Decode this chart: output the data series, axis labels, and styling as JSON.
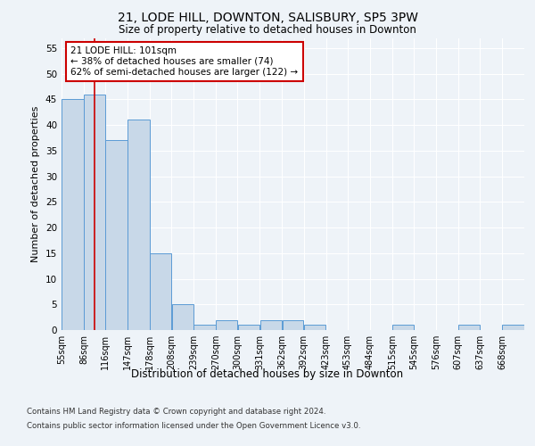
{
  "title": "21, LODE HILL, DOWNTON, SALISBURY, SP5 3PW",
  "subtitle": "Size of property relative to detached houses in Downton",
  "xlabel": "Distribution of detached houses by size in Downton",
  "ylabel": "Number of detached properties",
  "bin_labels": [
    "55sqm",
    "86sqm",
    "116sqm",
    "147sqm",
    "178sqm",
    "208sqm",
    "239sqm",
    "270sqm",
    "300sqm",
    "331sqm",
    "362sqm",
    "392sqm",
    "423sqm",
    "453sqm",
    "484sqm",
    "515sqm",
    "545sqm",
    "576sqm",
    "607sqm",
    "637sqm",
    "668sqm"
  ],
  "bin_edges": [
    55,
    86,
    116,
    147,
    178,
    208,
    239,
    270,
    300,
    331,
    362,
    392,
    423,
    453,
    484,
    515,
    545,
    576,
    607,
    637,
    668,
    699
  ],
  "bar_heights": [
    45,
    46,
    37,
    41,
    15,
    5,
    1,
    2,
    1,
    2,
    2,
    1,
    0,
    0,
    0,
    1,
    0,
    0,
    1,
    0,
    1
  ],
  "bar_color": "#c8d8e8",
  "bar_edge_color": "#5b9bd5",
  "red_line_x": 101,
  "ylim": [
    0,
    57
  ],
  "yticks": [
    0,
    5,
    10,
    15,
    20,
    25,
    30,
    35,
    40,
    45,
    50,
    55
  ],
  "annotation_text": "21 LODE HILL: 101sqm\n← 38% of detached houses are smaller (74)\n62% of semi-detached houses are larger (122) →",
  "annotation_box_color": "#ffffff",
  "annotation_box_edge_color": "#cc0000",
  "footer_line1": "Contains HM Land Registry data © Crown copyright and database right 2024.",
  "footer_line2": "Contains public sector information licensed under the Open Government Licence v3.0.",
  "background_color": "#eef3f8",
  "plot_background_color": "#eef3f8"
}
